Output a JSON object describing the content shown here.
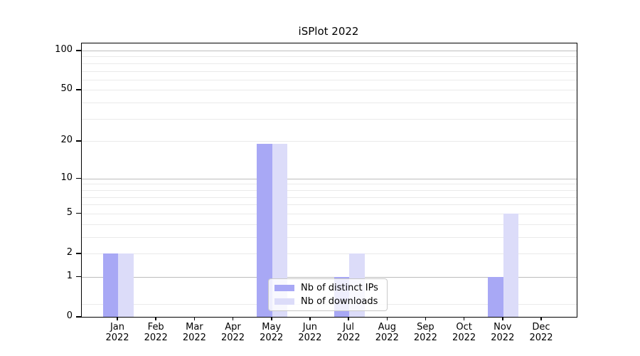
{
  "window": {
    "kind": "static-plot-image"
  },
  "chart_data": {
    "type": "bar",
    "title": "iSPlot 2022",
    "xlabel": "",
    "ylabel": "",
    "categories": [
      "Jan 2022",
      "Feb 2022",
      "Mar 2022",
      "Apr 2022",
      "May 2022",
      "Jun 2022",
      "Jul 2022",
      "Aug 2022",
      "Sep 2022",
      "Oct 2022",
      "Nov 2022",
      "Dec 2022"
    ],
    "series": [
      {
        "name": "Nb of distinct IPs",
        "color": "#a8a8f5",
        "values": [
          2,
          0,
          0,
          0,
          19,
          0,
          1,
          0,
          0,
          0,
          1,
          0
        ]
      },
      {
        "name": "Nb of downloads",
        "color": "#dcdcf9",
        "values": [
          2,
          0,
          0,
          0,
          19,
          0,
          2,
          0,
          0,
          0,
          5,
          0
        ]
      }
    ],
    "y_axis": {
      "scale": "log1p",
      "tick_values": [
        0,
        1,
        2,
        5,
        10,
        20,
        50,
        100
      ],
      "tick_labels": [
        "0",
        "1",
        "2",
        "5",
        "10",
        "20",
        "50",
        "100"
      ],
      "ylim": [
        0,
        113
      ],
      "major_gridlines": [
        1,
        10,
        100
      ],
      "minor_gridlines": [
        0.25,
        2,
        3,
        4,
        5,
        6,
        7,
        8,
        9,
        20,
        30,
        40,
        50,
        60,
        70,
        80,
        90
      ]
    },
    "grid": true,
    "legend": {
      "position": "lower-center-inside",
      "items": [
        {
          "label": "Nb of distinct IPs",
          "color": "#a8a8f5"
        },
        {
          "label": "Nb of downloads",
          "color": "#dcdcf9"
        }
      ]
    },
    "colors": {
      "major_grid": "#bdbdbd",
      "minor_grid": "#eaeaea",
      "spine": "#000000",
      "background": "#ffffff"
    }
  }
}
